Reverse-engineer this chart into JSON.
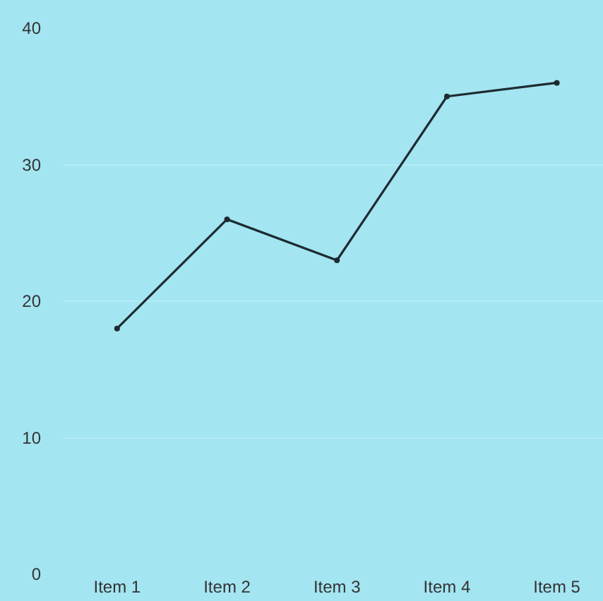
{
  "chart_data": {
    "type": "line",
    "categories": [
      "Item 1",
      "Item 2",
      "Item 3",
      "Item 4",
      "Item 5"
    ],
    "series": [
      {
        "color": "#1c2b30",
        "values": [
          18,
          26,
          23,
          35,
          36
        ]
      }
    ],
    "ylim": [
      0,
      40
    ],
    "yticks": [
      0,
      10,
      20,
      30,
      40
    ],
    "grid": "y",
    "legend": false,
    "marker": "circle",
    "line_style": "solid"
  }
}
